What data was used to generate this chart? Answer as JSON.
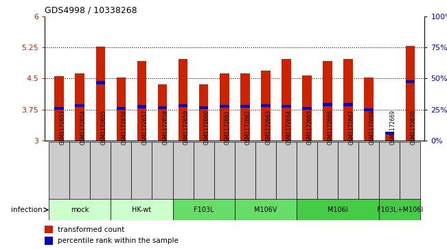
{
  "title": "GDS4998 / 10338268",
  "samples": [
    "GSM1172653",
    "GSM1172654",
    "GSM1172655",
    "GSM1172656",
    "GSM1172657",
    "GSM1172658",
    "GSM1172659",
    "GSM1172660",
    "GSM1172661",
    "GSM1172662",
    "GSM1172663",
    "GSM1172664",
    "GSM1172665",
    "GSM1172666",
    "GSM1172667",
    "GSM1172668",
    "GSM1172669",
    "GSM1172670"
  ],
  "bar_values": [
    4.55,
    4.62,
    5.27,
    4.52,
    4.92,
    4.35,
    4.97,
    4.35,
    4.62,
    4.62,
    4.68,
    4.97,
    4.57,
    4.92,
    4.97,
    4.52,
    3.18,
    5.28
  ],
  "percentile_values": [
    3.78,
    3.85,
    4.4,
    3.78,
    3.82,
    3.8,
    3.85,
    3.8,
    3.83,
    3.83,
    3.85,
    3.83,
    3.78,
    3.87,
    3.87,
    3.75,
    3.18,
    4.42
  ],
  "ylim": [
    3.0,
    6.0
  ],
  "yticks_left": [
    3.0,
    3.75,
    4.5,
    5.25,
    6.0
  ],
  "ytick_labels_left": [
    "3",
    "3.75",
    "4.5",
    "5.25",
    "6"
  ],
  "yticks_right_pct": [
    0,
    25,
    50,
    75,
    100
  ],
  "ytick_labels_right": [
    "0%",
    "25%",
    "50%",
    "75%",
    "100%"
  ],
  "bar_color": "#cc2200",
  "percentile_color": "#0000cc",
  "bg_color": "#ffffff",
  "bar_width": 0.45,
  "groups": [
    {
      "label": "mock",
      "indices": [
        0,
        1,
        2
      ],
      "color": "#ccffcc"
    },
    {
      "label": "HK-wt",
      "indices": [
        3,
        4,
        5
      ],
      "color": "#ccffcc"
    },
    {
      "label": "F103L",
      "indices": [
        6,
        7,
        8
      ],
      "color": "#66dd66"
    },
    {
      "label": "M106V",
      "indices": [
        9,
        10,
        11
      ],
      "color": "#66dd66"
    },
    {
      "label": "M106I",
      "indices": [
        12,
        13,
        14,
        15
      ],
      "color": "#44cc44"
    },
    {
      "label": "F103L+M106I",
      "indices": [
        16,
        17
      ],
      "color": "#44cc44"
    }
  ],
  "legend_entries": [
    "transformed count",
    "percentile rank within the sample"
  ],
  "legend_colors": [
    "#cc2200",
    "#0000cc"
  ]
}
